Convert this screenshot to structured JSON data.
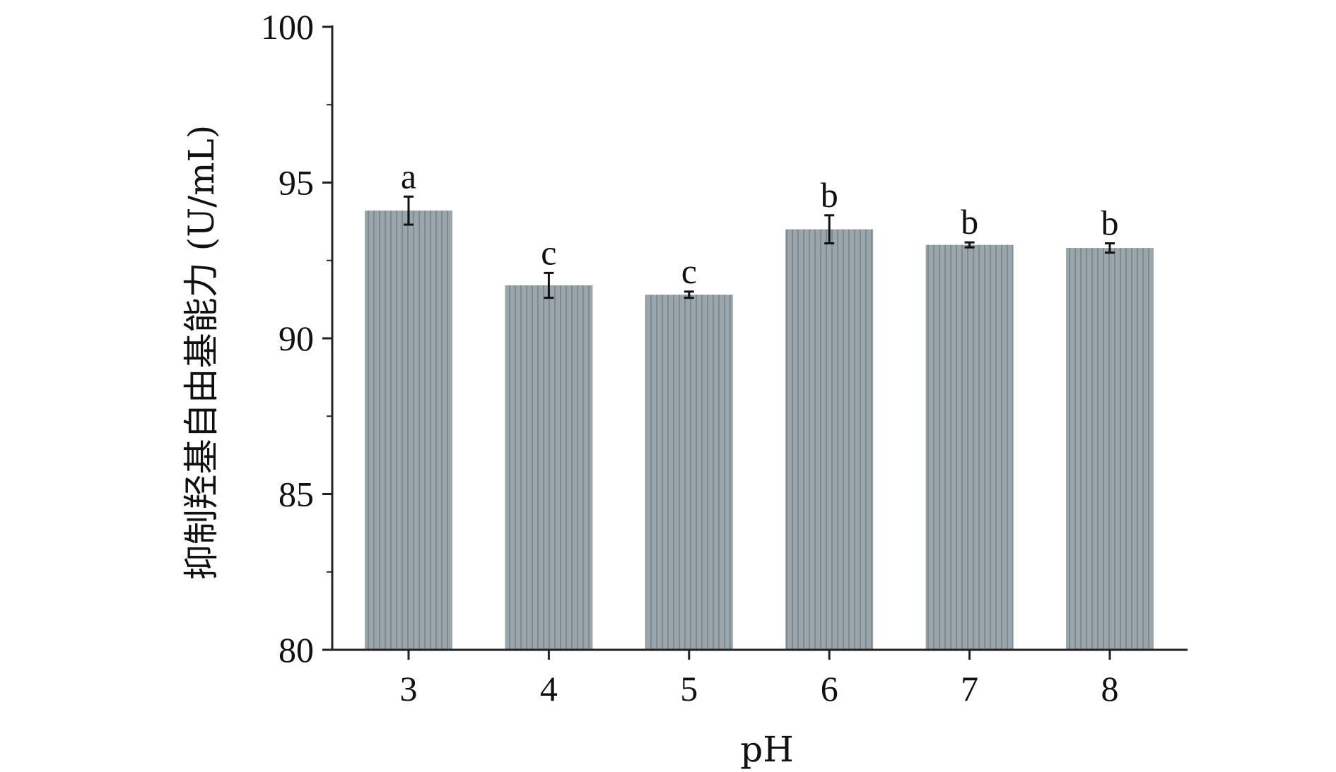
{
  "chart_data": {
    "type": "bar",
    "categories": [
      "3",
      "4",
      "5",
      "6",
      "7",
      "8"
    ],
    "values": [
      94.1,
      91.7,
      91.4,
      93.5,
      93.0,
      92.9
    ],
    "errors": [
      0.45,
      0.4,
      0.1,
      0.45,
      0.08,
      0.15
    ],
    "significance_letters": [
      "a",
      "c",
      "c",
      "b",
      "b",
      "b"
    ],
    "title": "",
    "xlabel": "pH",
    "ylabel": "抑制羟基自由基能力 (U/mL)",
    "ylim": [
      80,
      100
    ],
    "y_ticks": [
      "80",
      "85",
      "90",
      "95",
      "100"
    ],
    "y_tick_values": [
      80,
      85,
      90,
      95,
      100
    ],
    "grid": false,
    "legend": "none",
    "bar_color": "#9aa6ab",
    "bar_stripe_color": "#7f8b90",
    "axis_color": "#222222",
    "error_bar_color": "#111111"
  }
}
